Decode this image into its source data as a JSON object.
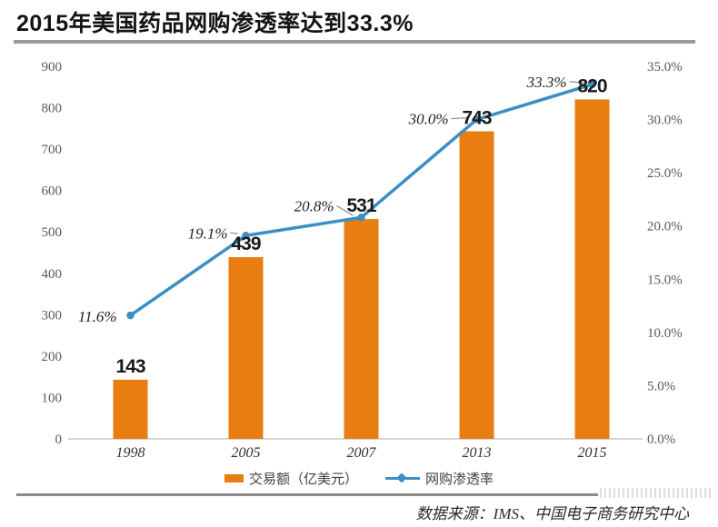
{
  "title": "2015年美国药品网购渗透率达到33.3%",
  "source": "数据来源：IMS、中国电子商务研究中心",
  "legend": {
    "bar_label": "交易额（亿美元）",
    "line_label": "网购渗透率"
  },
  "colors": {
    "bar": "#e87d11",
    "line": "#3b8ec6",
    "axis_text": "#595959",
    "category_text": "#333333",
    "value_label_text": "#1a1a1a",
    "pct_label_text": "#1f1f1f",
    "baseline": "#c9c9c9",
    "leader": "#8c8c8c"
  },
  "chart_data": {
    "type": "bar",
    "subtype": "bar+line combo",
    "title": "2015年美国药品网购渗透率达到33.3%",
    "categories": [
      "1998",
      "2005",
      "2007",
      "2013",
      "2015"
    ],
    "series": [
      {
        "name": "交易额（亿美元）",
        "type": "bar",
        "axis": "left",
        "values": [
          143,
          439,
          531,
          743,
          820
        ],
        "labels": [
          "143",
          "439",
          "531",
          "743",
          "820"
        ]
      },
      {
        "name": "网购渗透率",
        "type": "line",
        "axis": "right",
        "values": [
          11.6,
          19.1,
          20.8,
          30.0,
          33.3
        ],
        "labels": [
          "11.6%",
          "19.1%",
          "20.8%",
          "30.0%",
          "33.3%"
        ]
      }
    ],
    "left_axis": {
      "min": 0,
      "max": 900,
      "step": 100,
      "ticks": [
        "0",
        "100",
        "200",
        "300",
        "400",
        "500",
        "600",
        "700",
        "800",
        "900"
      ]
    },
    "right_axis": {
      "min": 0,
      "max": 35,
      "step": 5,
      "ticks": [
        "0.0%",
        "5.0%",
        "10.0%",
        "15.0%",
        "20.0%",
        "25.0%",
        "30.0%",
        "35.0%"
      ]
    },
    "grid": false,
    "legend_position": "bottom",
    "xlabel": "",
    "ylabel_left": "交易额（亿美元）",
    "ylabel_right": "网购渗透率"
  }
}
